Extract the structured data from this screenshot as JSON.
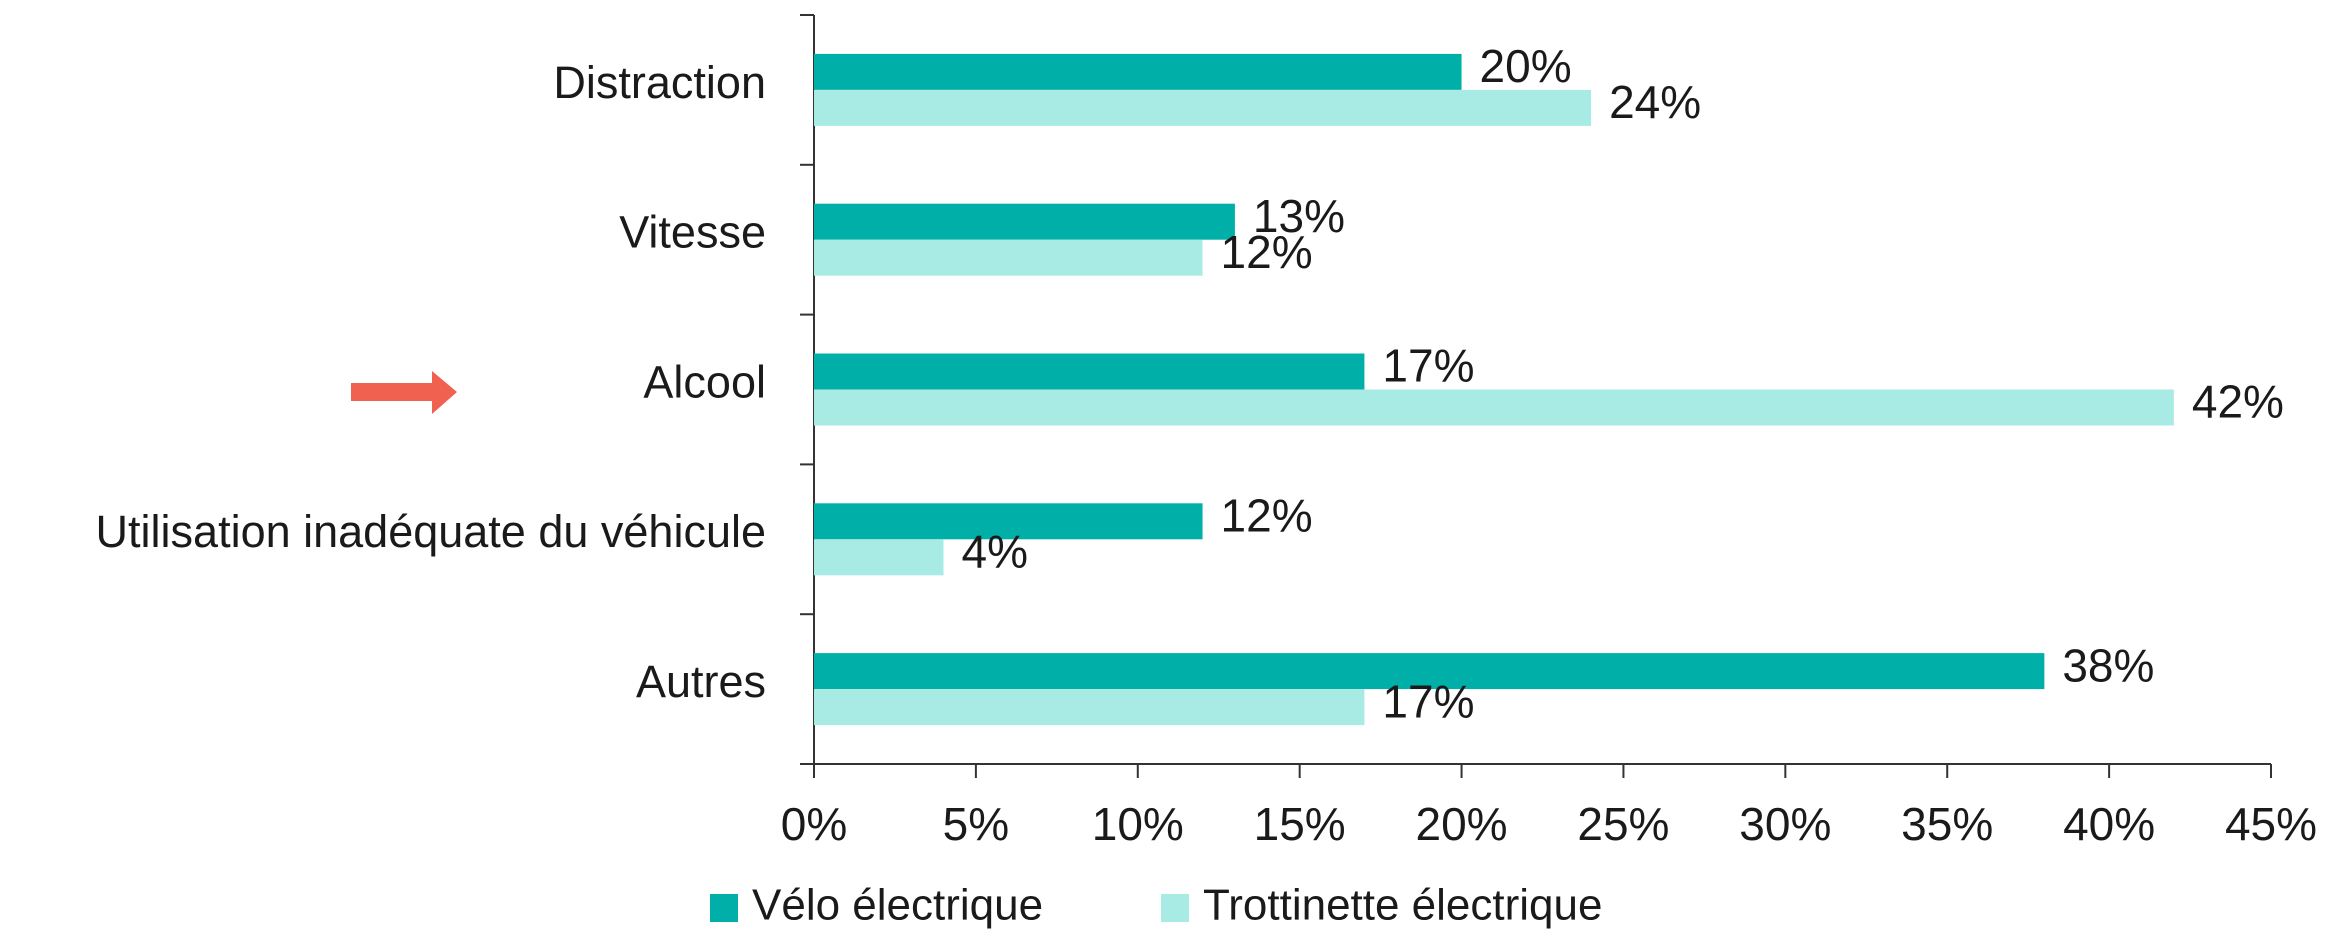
{
  "chart_data": {
    "type": "bar",
    "orientation": "horizontal",
    "categories": [
      "Distraction",
      "Vitesse",
      "Alcool",
      "Utilisation inadéquate du véhicule",
      "Autres"
    ],
    "series": [
      {
        "name": "Vélo électrique",
        "color": "#00b0a8",
        "values": [
          20,
          13,
          17,
          12,
          38
        ],
        "value_labels": [
          "20%",
          "13%",
          "17%",
          "12%",
          "38%"
        ]
      },
      {
        "name": "Trottinette électrique",
        "color": "#a8ebe4",
        "values": [
          24,
          12,
          42,
          4,
          17
        ],
        "value_labels": [
          "24%",
          "12%",
          "42%",
          "4%",
          "17%"
        ]
      }
    ],
    "xlim": [
      0,
      45
    ],
    "xticks": [
      {
        "value": 0,
        "label": "0%"
      },
      {
        "value": 5,
        "label": "5%"
      },
      {
        "value": 10,
        "label": "10%"
      },
      {
        "value": 15,
        "label": "15%"
      },
      {
        "value": 20,
        "label": "20%"
      },
      {
        "value": 25,
        "label": "25%"
      },
      {
        "value": 30,
        "label": "30%"
      },
      {
        "value": 35,
        "label": "35%"
      },
      {
        "value": 40,
        "label": "40%"
      },
      {
        "value": 45,
        "label": "45%"
      }
    ],
    "grid": false,
    "legend": "bottom"
  }
}
